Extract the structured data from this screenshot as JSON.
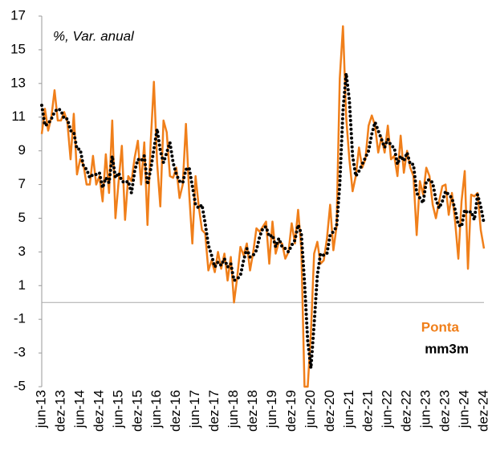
{
  "chart_data": {
    "type": "line",
    "annotation": "%, Var. anual",
    "categories": [
      "jun-13",
      null,
      null,
      null,
      null,
      null,
      "dez-13",
      null,
      null,
      null,
      null,
      null,
      "jun-14",
      null,
      null,
      null,
      null,
      null,
      "dez-14",
      null,
      null,
      null,
      null,
      null,
      "jun-15",
      null,
      null,
      null,
      null,
      null,
      "dez-15",
      null,
      null,
      null,
      null,
      null,
      "jun-16",
      null,
      null,
      null,
      null,
      null,
      "dez-16",
      null,
      null,
      null,
      null,
      null,
      "jun-17",
      null,
      null,
      null,
      null,
      null,
      "dez-17",
      null,
      null,
      null,
      null,
      null,
      "jun-18",
      null,
      null,
      null,
      null,
      null,
      "dez-18",
      null,
      null,
      null,
      null,
      null,
      "jun-19",
      null,
      null,
      null,
      null,
      null,
      "dez-19",
      null,
      null,
      null,
      null,
      null,
      "jun-20",
      null,
      null,
      null,
      null,
      null,
      "dez-20",
      null,
      null,
      null,
      null,
      null,
      "jun-21",
      null,
      null,
      null,
      null,
      null,
      "dez-21",
      null,
      null,
      null,
      null,
      null,
      "jun-22",
      null,
      null,
      null,
      null,
      null,
      "dez-22",
      null,
      null,
      null,
      null,
      null,
      "jun-23",
      null,
      null,
      null,
      null,
      null,
      "dez-23",
      null,
      null,
      null,
      null,
      null,
      "jun-24",
      null,
      null,
      null,
      null,
      null,
      "dez-24"
    ],
    "series": [
      {
        "name": "Ponta",
        "color": "#f07f1a",
        "style": "solid",
        "values": [
          10.0,
          11.5,
          10.2,
          11.0,
          12.6,
          10.8,
          10.8,
          11.3,
          10.7,
          8.5,
          11.2,
          7.6,
          8.5,
          8.2,
          7.0,
          7.0,
          8.7,
          7.0,
          7.5,
          6.0,
          8.8,
          6.5,
          10.8,
          5.0,
          7.2,
          9.3,
          4.9,
          7.5,
          7.2,
          8.6,
          9.6,
          7.0,
          9.5,
          4.6,
          9.5,
          13.1,
          8.3,
          5.7,
          10.8,
          10.1,
          7.5,
          7.4,
          8.0,
          6.2,
          7.0,
          10.6,
          6.5,
          3.5,
          7.5,
          5.7,
          4.3,
          4.1,
          1.9,
          2.5,
          1.8,
          3.0,
          2.0,
          2.9,
          1.3,
          2.7,
          0.0,
          1.5,
          3.3,
          2.8,
          3.5,
          1.9,
          3.0,
          4.4,
          4.2,
          4.5,
          4.8,
          2.3,
          4.8,
          2.9,
          3.6,
          3.5,
          2.6,
          3.0,
          4.7,
          3.5,
          5.5,
          3.2,
          -5.0,
          -5.0,
          -1.8,
          2.9,
          3.6,
          2.3,
          2.5,
          3.8,
          5.8,
          3.1,
          4.5,
          13.3,
          16.4,
          11.0,
          8.5,
          6.6,
          7.5,
          9.2,
          8.0,
          8.5,
          10.5,
          11.1,
          10.5,
          8.9,
          9.8,
          8.9,
          10.5,
          8.5,
          8.7,
          7.5,
          9.9,
          7.7,
          9.0,
          8.0,
          7.5,
          4.0,
          7.2,
          6.4,
          8.0,
          7.5,
          5.8,
          5.0,
          6.0,
          6.9,
          7.0,
          5.2,
          6.5,
          4.8,
          2.6,
          6.0,
          7.8,
          2.0,
          6.4,
          6.3,
          6.5,
          4.3,
          3.2
        ]
      },
      {
        "name": "mm3m",
        "color": "#000000",
        "style": "dotted",
        "values": [
          11.7,
          10.5,
          10.6,
          10.9,
          11.3,
          11.5,
          11.4,
          10.9,
          10.9,
          10.2,
          10.1,
          9.1,
          9.1,
          8.1,
          7.9,
          7.4,
          7.6,
          7.6,
          7.7,
          6.8,
          7.4,
          7.1,
          8.7,
          7.4,
          7.7,
          7.2,
          7.1,
          7.2,
          6.5,
          7.8,
          8.5,
          8.4,
          8.7,
          7.0,
          7.9,
          9.1,
          10.3,
          9.0,
          8.3,
          8.9,
          9.5,
          8.3,
          7.6,
          7.2,
          7.1,
          7.9,
          8.0,
          6.9,
          5.8,
          5.6,
          5.8,
          4.7,
          3.4,
          2.8,
          2.1,
          2.4,
          2.2,
          2.6,
          2.1,
          2.3,
          1.3,
          1.4,
          1.6,
          2.5,
          3.2,
          2.7,
          2.8,
          3.1,
          3.9,
          4.4,
          4.5,
          3.9,
          4.0,
          3.3,
          3.8,
          3.3,
          3.2,
          3.0,
          3.4,
          3.7,
          4.6,
          4.1,
          1.2,
          -2.3,
          -3.9,
          -1.3,
          1.6,
          2.9,
          2.8,
          2.9,
          4.0,
          4.2,
          4.5,
          7.0,
          11.4,
          13.6,
          12.0,
          8.7,
          7.5,
          7.8,
          8.2,
          8.6,
          9.0,
          10.0,
          10.7,
          10.2,
          9.7,
          9.2,
          9.7,
          9.3,
          9.2,
          8.2,
          8.7,
          8.4,
          8.9,
          8.2,
          8.2,
          6.5,
          6.2,
          5.9,
          7.2,
          7.3,
          7.1,
          6.1,
          5.6,
          6.0,
          6.6,
          6.4,
          6.2,
          5.5,
          4.6,
          4.5,
          5.5,
          5.3,
          5.4,
          4.9,
          6.4,
          5.7,
          4.7
        ]
      }
    ],
    "ylim": [
      -5,
      17
    ],
    "yticks": [
      -5,
      -3,
      -1,
      1,
      3,
      5,
      7,
      9,
      11,
      13,
      15,
      17
    ],
    "zero_line": 0,
    "legend": "lower right"
  }
}
